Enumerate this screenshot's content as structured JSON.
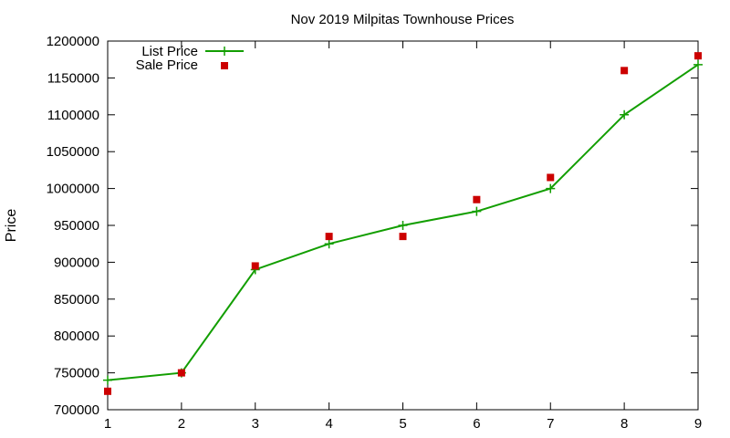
{
  "chart_data": {
    "type": "line",
    "title": "Nov 2019 Milpitas Townhouse Prices",
    "xlabel": "",
    "ylabel": "Price",
    "xlim": [
      1,
      9
    ],
    "ylim": [
      700000,
      1200000
    ],
    "x_ticks": [
      1,
      2,
      3,
      4,
      5,
      6,
      7,
      8,
      9
    ],
    "y_ticks": [
      700000,
      750000,
      800000,
      850000,
      900000,
      950000,
      1000000,
      1050000,
      1100000,
      1150000,
      1200000
    ],
    "grid": false,
    "legend_position": "top-left",
    "series": [
      {
        "name": "List Price",
        "style": "line-with-plus-markers",
        "color": "#129e00",
        "x": [
          1,
          2,
          3,
          4,
          5,
          6,
          7,
          8,
          9
        ],
        "values": [
          740000,
          750000,
          890000,
          925000,
          950000,
          969000,
          1000000,
          1100000,
          1168000
        ]
      },
      {
        "name": "Sale Price",
        "style": "square-markers",
        "color": "#cc0000",
        "x": [
          1,
          2,
          3,
          4,
          5,
          6,
          7,
          8,
          9
        ],
        "values": [
          725000,
          750000,
          895000,
          935000,
          935000,
          985000,
          1015000,
          1160000,
          1180000
        ]
      }
    ]
  }
}
